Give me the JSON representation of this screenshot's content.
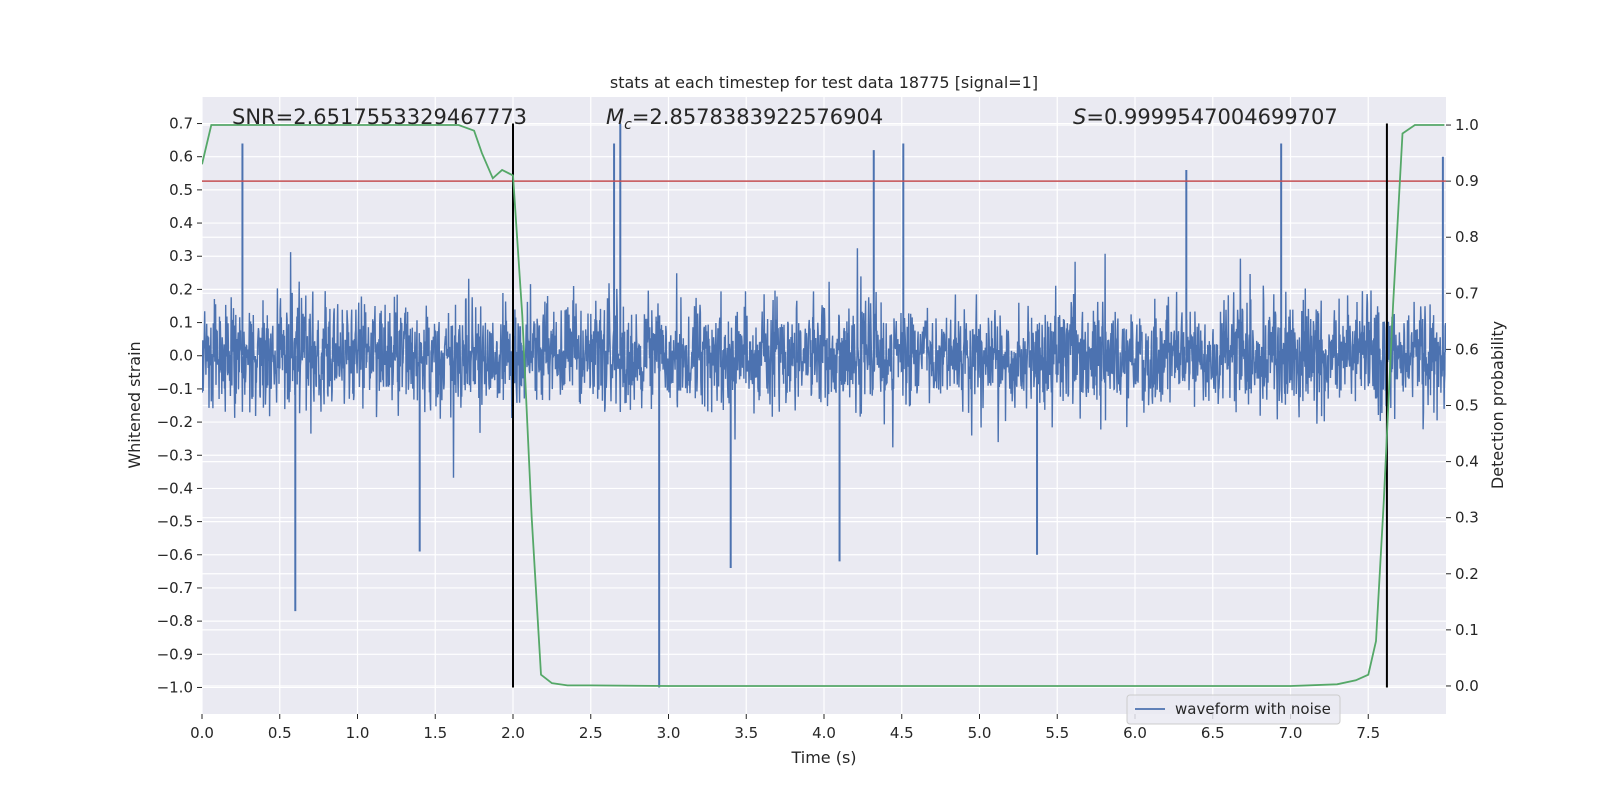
{
  "chart_data": {
    "type": "line",
    "title": "stats at each timestep for test data 18775 [signal=1]",
    "xlabel": "Time (s)",
    "ylabel_left": "Whitened strain",
    "ylabel_right": "Detection probability",
    "xlim": [
      0.0,
      8.0
    ],
    "ylim_left": [
      -1.08,
      0.78
    ],
    "ylim_right": [
      -0.05,
      1.05
    ],
    "x_ticks": [
      "0.0",
      "0.5",
      "1.0",
      "1.5",
      "2.0",
      "2.5",
      "3.0",
      "3.5",
      "4.0",
      "4.5",
      "5.0",
      "5.5",
      "6.0",
      "6.5",
      "7.0",
      "7.5"
    ],
    "x_tick_values": [
      0,
      0.5,
      1,
      1.5,
      2,
      2.5,
      3,
      3.5,
      4,
      4.5,
      5,
      5.5,
      6,
      6.5,
      7,
      7.5
    ],
    "y_ticks_left": [
      "0.7",
      "0.6",
      "0.5",
      "0.4",
      "0.3",
      "0.2",
      "0.1",
      "0.0",
      "−0.1",
      "−0.2",
      "−0.3",
      "−0.4",
      "−0.5",
      "−0.6",
      "−0.7",
      "−0.8",
      "−0.9",
      "−1.0"
    ],
    "y_tick_values_left": [
      0.7,
      0.6,
      0.5,
      0.4,
      0.3,
      0.2,
      0.1,
      0,
      -0.1,
      -0.2,
      -0.3,
      -0.4,
      -0.5,
      -0.6,
      -0.7,
      -0.8,
      -0.9,
      -1.0
    ],
    "y_ticks_right": [
      "1.0",
      "0.9",
      "0.8",
      "0.7",
      "0.6",
      "0.5",
      "0.4",
      "0.3",
      "0.2",
      "0.1",
      "0.0"
    ],
    "y_tick_values_right": [
      1.0,
      0.9,
      0.8,
      0.7,
      0.6,
      0.5,
      0.4,
      0.3,
      0.2,
      0.1,
      0.0
    ],
    "grid": true,
    "legend": {
      "position": "lower-right",
      "entries": [
        "waveform with noise"
      ]
    },
    "annotations": {
      "snr": "SNR=2.6517553329467773",
      "mc_symbol": "M",
      "mc_sub": "c",
      "mc_value": "=2.8578383922576904",
      "s_symbol": "S",
      "s_value": "=0.9999547004699707"
    },
    "series": [
      {
        "name": "waveform with noise",
        "axis": "left",
        "color": "#4c72b0",
        "kind": "noise-band",
        "t_range": [
          0.0,
          8.0
        ],
        "typical_amplitude": [
          -0.32,
          0.32
        ],
        "notable_spikes": [
          {
            "t": 0.6,
            "y": -0.77
          },
          {
            "t": 2.94,
            "y": -1.0
          },
          {
            "t": 2.69,
            "y": 0.7
          },
          {
            "t": 2.65,
            "y": 0.64
          },
          {
            "t": 0.26,
            "y": 0.64
          },
          {
            "t": 4.32,
            "y": 0.62
          },
          {
            "t": 4.51,
            "y": 0.64
          },
          {
            "t": 3.4,
            "y": -0.64
          },
          {
            "t": 6.94,
            "y": 0.64
          },
          {
            "t": 7.98,
            "y": 0.6
          },
          {
            "t": 6.33,
            "y": 0.56
          },
          {
            "t": 1.4,
            "y": -0.59
          },
          {
            "t": 5.37,
            "y": -0.6
          },
          {
            "t": 4.1,
            "y": -0.62
          }
        ]
      },
      {
        "name": "detection probability",
        "axis": "right",
        "color": "#55a868",
        "x": [
          0.0,
          0.06,
          0.2,
          0.5,
          1.0,
          1.5,
          1.65,
          1.75,
          1.8,
          1.87,
          1.93,
          2.0,
          2.06,
          2.12,
          2.18,
          2.25,
          2.35,
          2.5,
          3.0,
          3.5,
          4.0,
          4.5,
          5.0,
          5.5,
          6.0,
          6.5,
          7.0,
          7.3,
          7.42,
          7.5,
          7.55,
          7.6,
          7.66,
          7.72,
          7.8,
          7.99
        ],
        "y": [
          0.93,
          1.0,
          1.0,
          1.0,
          1.0,
          1.0,
          1.0,
          0.99,
          0.95,
          0.905,
          0.92,
          0.91,
          0.66,
          0.3,
          0.02,
          0.005,
          0.001,
          0.001,
          0.0,
          0.0,
          0.0,
          0.0,
          0.0,
          0.0,
          0.0,
          0.0,
          0.0,
          0.003,
          0.01,
          0.02,
          0.08,
          0.33,
          0.68,
          0.985,
          1.0,
          1.0
        ]
      },
      {
        "name": "threshold",
        "axis": "right",
        "color": "#c44e52",
        "y_constant": 0.9
      },
      {
        "name": "signal window",
        "axis": "left",
        "color": "#000000",
        "vlines": [
          2.0,
          7.62
        ],
        "y_range": [
          -1.0,
          0.7
        ]
      }
    ]
  }
}
